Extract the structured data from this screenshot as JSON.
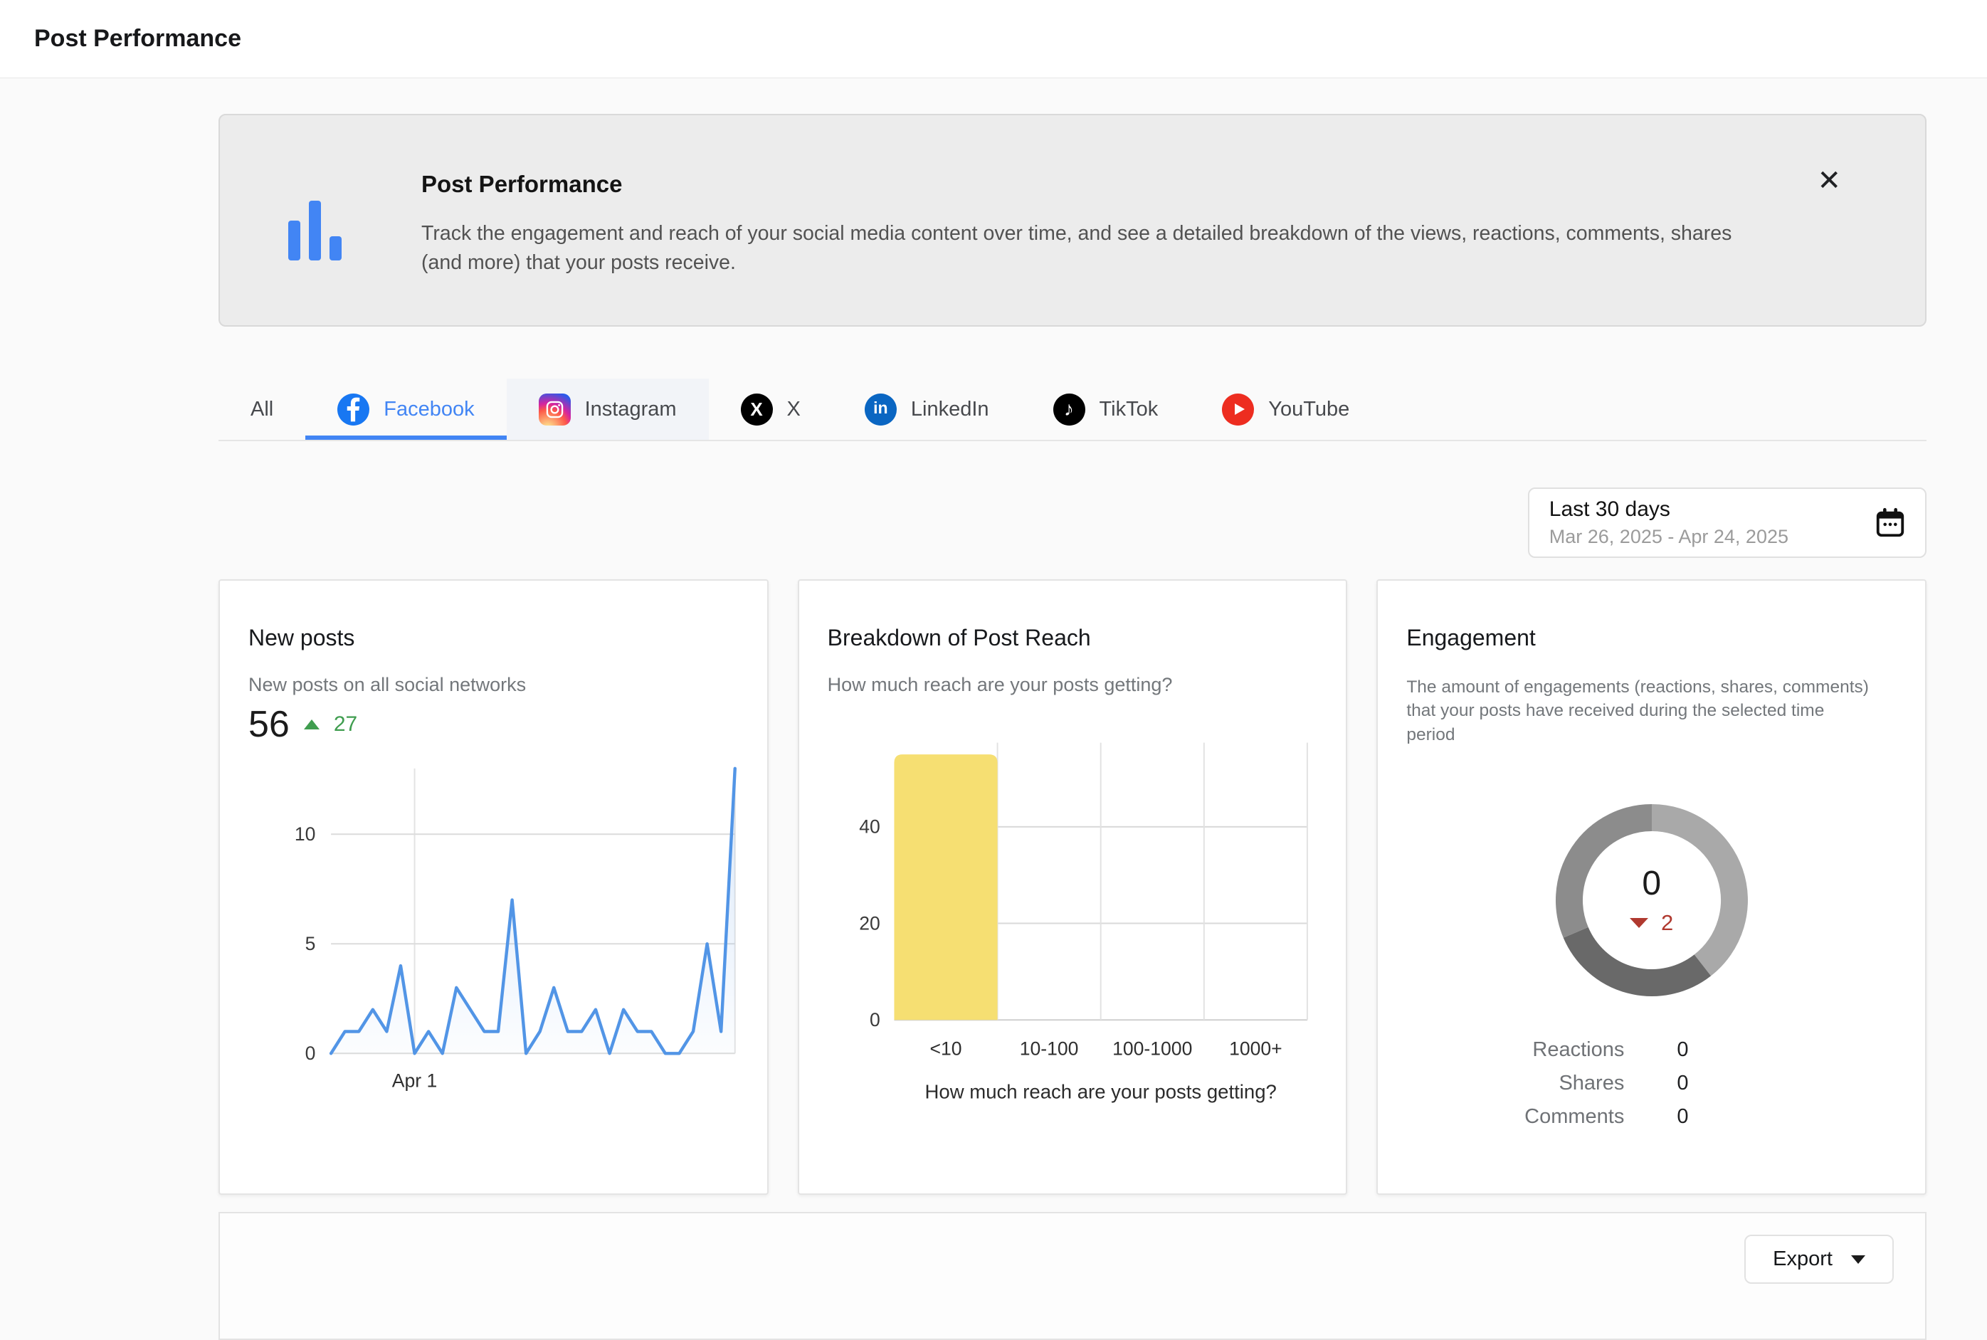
{
  "page": {
    "title": "Post Performance"
  },
  "banner": {
    "title": "Post Performance",
    "description": "Track the engagement and reach of your social media content over time, and see a detailed breakdown of the views, reactions, comments, shares (and more) that your posts receive.",
    "close_glyph": "✕"
  },
  "tabs": [
    {
      "id": "all",
      "label": "All",
      "icon": null,
      "active": false,
      "highlighted": false
    },
    {
      "id": "facebook",
      "label": "Facebook",
      "icon": "facebook",
      "active": true,
      "highlighted": false
    },
    {
      "id": "instagram",
      "label": "Instagram",
      "icon": "instagram",
      "active": false,
      "highlighted": true
    },
    {
      "id": "x",
      "label": "X",
      "icon": "x",
      "active": false,
      "highlighted": false
    },
    {
      "id": "linkedin",
      "label": "LinkedIn",
      "icon": "linkedin",
      "active": false,
      "highlighted": false
    },
    {
      "id": "tiktok",
      "label": "TikTok",
      "icon": "tiktok",
      "active": false,
      "highlighted": false
    },
    {
      "id": "youtube",
      "label": "YouTube",
      "icon": "youtube",
      "active": false,
      "highlighted": false
    }
  ],
  "date_filter": {
    "label": "Last 30 days",
    "range": "Mar 26, 2025 - Apr 24, 2025"
  },
  "cards": {
    "new_posts": {
      "title": "New posts",
      "subtitle": "New posts on all social networks",
      "value": "56",
      "delta": "27",
      "delta_direction": "up"
    },
    "post_reach": {
      "title": "Breakdown of Post Reach",
      "subtitle": "How much reach are your posts getting?"
    },
    "engagement": {
      "title": "Engagement",
      "description": "The amount of engagements (reactions, shares, comments) that your posts have received during the selected time period",
      "total": "0",
      "delta": "2",
      "delta_direction": "down",
      "legend": [
        {
          "label": "Reactions",
          "value": "0"
        },
        {
          "label": "Shares",
          "value": "0"
        },
        {
          "label": "Comments",
          "value": "0"
        }
      ]
    }
  },
  "footer": {
    "export_label": "Export"
  },
  "chart_data": [
    {
      "type": "line",
      "title": "New posts",
      "x_start": "Mar 26, 2025",
      "x_end": "Apr 24, 2025",
      "values": [
        0,
        1,
        1,
        2,
        1,
        4,
        0,
        1,
        0,
        3,
        2,
        1,
        1,
        7,
        0,
        1,
        3,
        1,
        1,
        2,
        0,
        2,
        1,
        1,
        0,
        0,
        1,
        5,
        1,
        13
      ],
      "yticks": [
        0,
        5,
        10
      ],
      "ylim": [
        0,
        13
      ],
      "xticks": [
        {
          "index": 6,
          "label": "Apr 1"
        },
        {
          "index": 29,
          "label": ""
        }
      ],
      "line_color": "#5295e6"
    },
    {
      "type": "bar",
      "categories": [
        "<10",
        "10-100",
        "100-1000",
        "1000+"
      ],
      "values": [
        55,
        0,
        0,
        0
      ],
      "yticks": [
        0,
        20,
        40
      ],
      "ylim": [
        0,
        58
      ],
      "xlabel": "How much reach are your posts getting?",
      "bar_color": "#f6df72"
    },
    {
      "type": "donut",
      "total": 0,
      "segments": [
        {
          "name": "segment-1",
          "angle_deg": 142,
          "color": "#a9a9a9"
        },
        {
          "name": "segment-2",
          "angle_deg": 105,
          "color": "#696969"
        },
        {
          "name": "segment-3",
          "angle_deg": 113,
          "color": "#8c8c8c"
        }
      ]
    }
  ],
  "colors": {
    "accent_blue": "#4285f4",
    "positive_green": "#3f9d4f",
    "negative_red": "#b0392f",
    "facebook_blue": "#1877f2",
    "linkedin_blue": "#0a66c2",
    "youtube_red": "#ed2d20",
    "bar_yellow": "#f6df72",
    "line_blue": "#5295e6"
  }
}
